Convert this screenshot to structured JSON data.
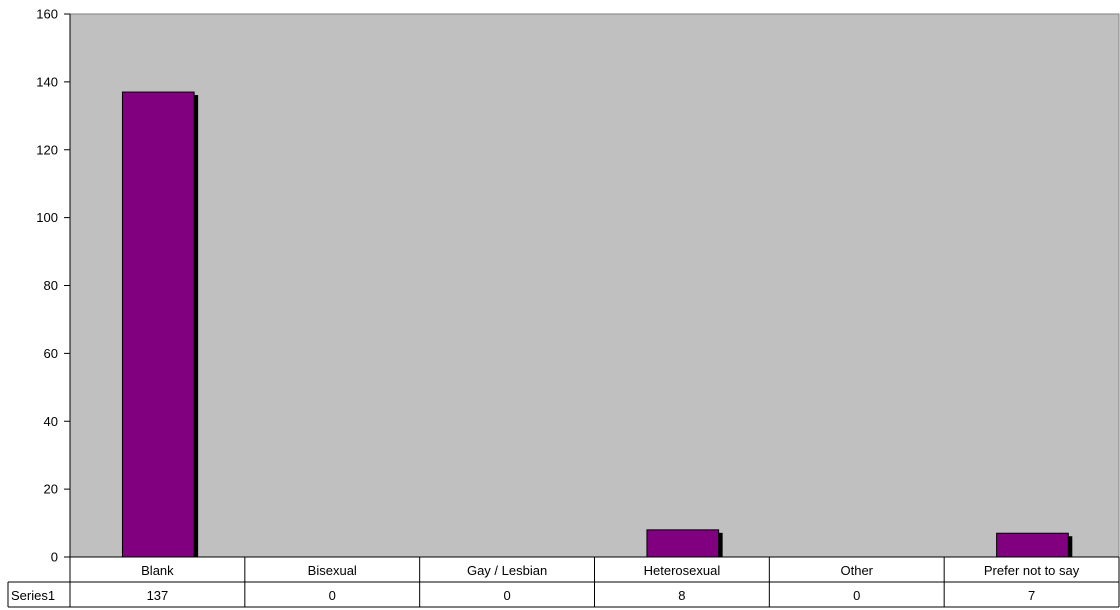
{
  "chart_data": {
    "type": "bar",
    "title": "",
    "xlabel": "",
    "ylabel": "",
    "categories": [
      "Blank",
      "Bisexual",
      "Gay / Lesbian",
      "Heterosexual",
      "Other",
      "Prefer not to say"
    ],
    "series": [
      {
        "name": "Series1",
        "values": [
          137,
          0,
          0,
          8,
          0,
          7
        ],
        "color": "#800080"
      }
    ],
    "ylim": [
      0,
      160
    ],
    "yticks": [
      0,
      20,
      40,
      60,
      80,
      100,
      120,
      140,
      160
    ],
    "grid": false,
    "legend": "data-table",
    "plot_background": "#c0c0c0"
  }
}
